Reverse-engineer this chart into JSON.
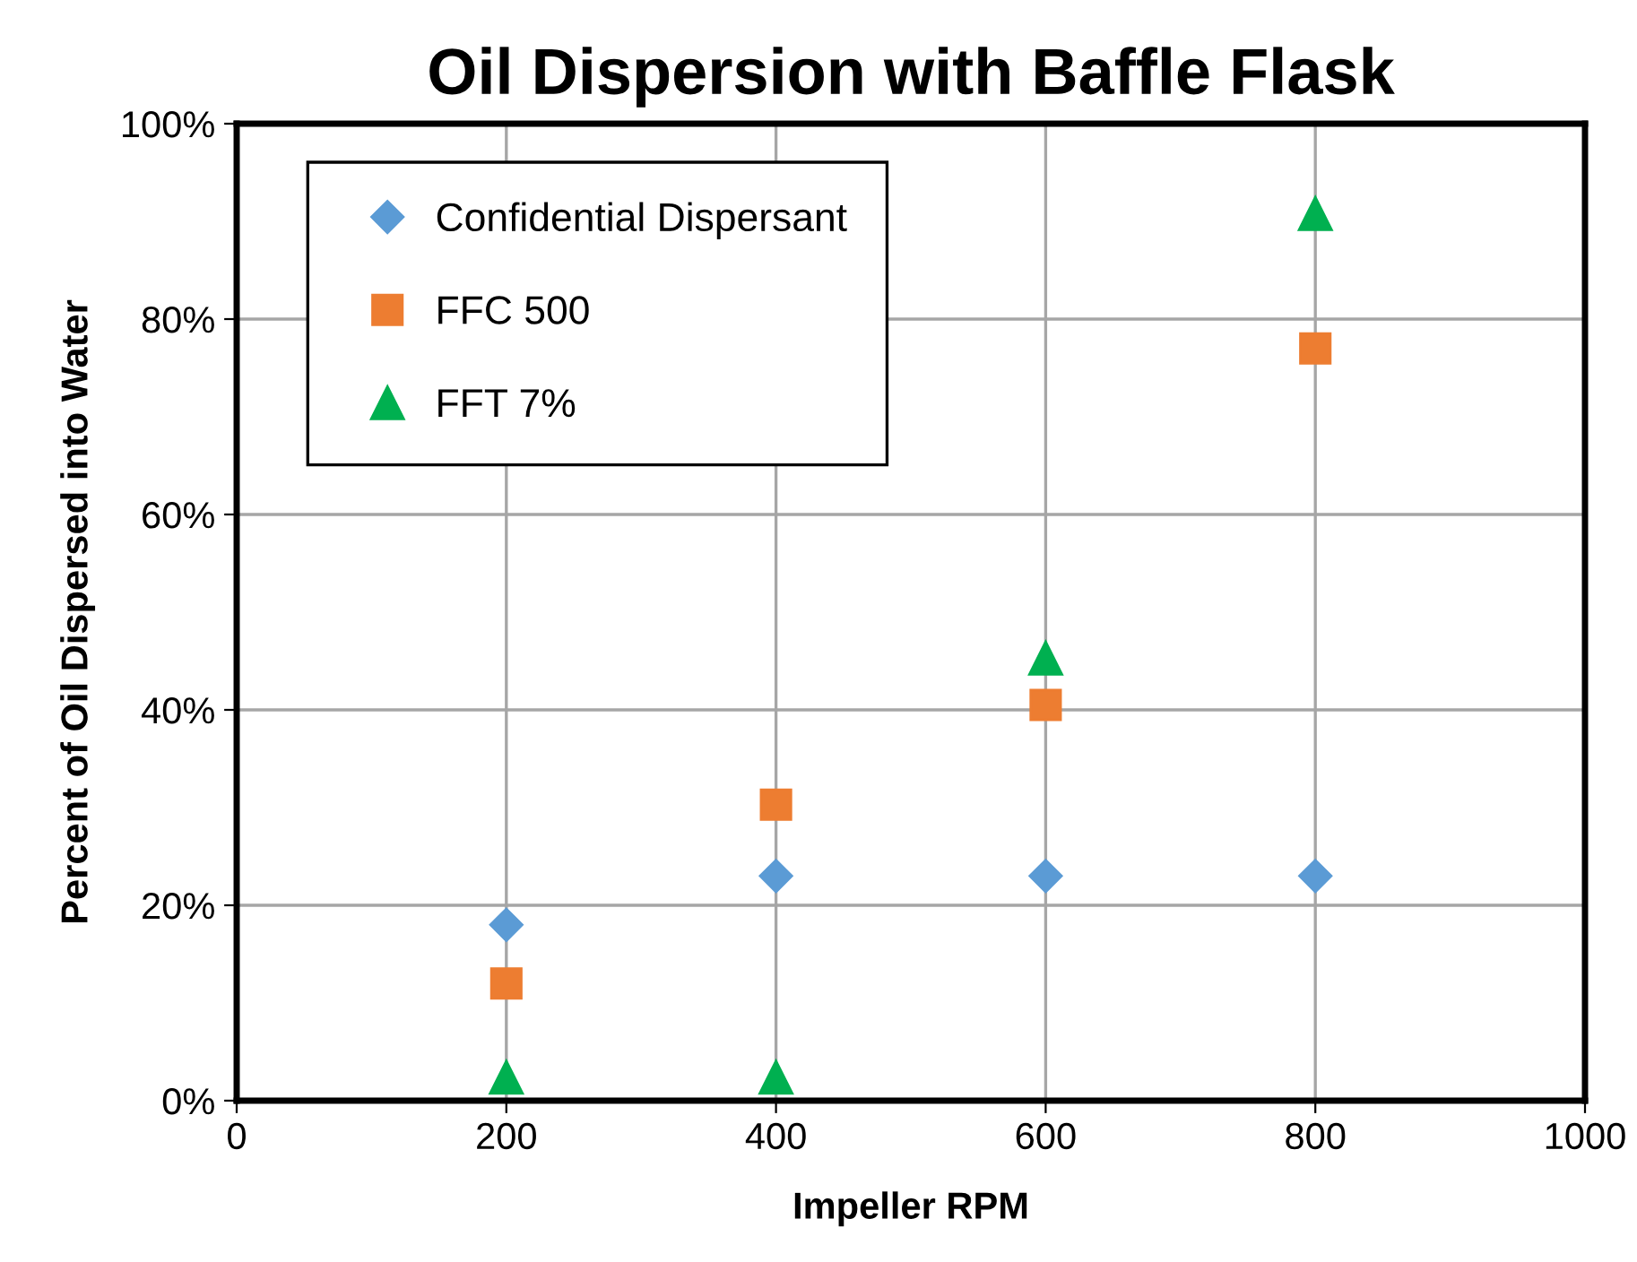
{
  "chart_data": {
    "type": "scatter",
    "title": "Oil Dispersion with Baffle Flask",
    "xlabel": "Impeller RPM",
    "ylabel": "Percent of Oil Dispersed into Water",
    "x": [
      200,
      400,
      600,
      800
    ],
    "series": [
      {
        "name": "Confidential Dispersant",
        "color": "#5b9bd5",
        "marker": "diamond",
        "values": [
          18,
          23,
          23,
          23
        ]
      },
      {
        "name": "FFC 500",
        "color": "#ed7d31",
        "marker": "square",
        "values": [
          12,
          30.3,
          40.5,
          77
        ]
      },
      {
        "name": "FFT 7%",
        "color": "#00b050",
        "marker": "triangle",
        "values": [
          2.4,
          2.4,
          45.3,
          90.8
        ]
      }
    ],
    "xlim": [
      0,
      1000
    ],
    "xticks": [
      0,
      200,
      400,
      600,
      800,
      1000
    ],
    "ylim": [
      0,
      100
    ],
    "yticks": [
      {
        "value": 0,
        "label": "0%"
      },
      {
        "value": 20,
        "label": "20%"
      },
      {
        "value": 40,
        "label": "40%"
      },
      {
        "value": 60,
        "label": "60%"
      },
      {
        "value": 80,
        "label": "80%"
      },
      {
        "value": 100,
        "label": "100%"
      }
    ],
    "grid": true,
    "legend": "top left"
  }
}
